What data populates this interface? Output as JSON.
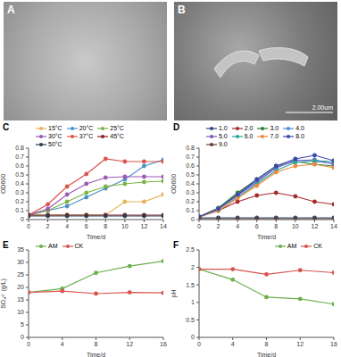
{
  "images": [
    {
      "label": "A"
    },
    {
      "label": "B",
      "scale_bar": "2.00um"
    }
  ],
  "chart_data": [
    {
      "panel": "C",
      "type": "line",
      "x_label": "Time/d",
      "y_label": "OD600",
      "x": [
        0,
        2,
        4,
        6,
        8,
        10,
        12,
        14
      ],
      "xlim": [
        0,
        14
      ],
      "xticks": [
        0,
        2,
        4,
        6,
        8,
        10,
        12,
        14
      ],
      "ylim": [
        0,
        0.8
      ],
      "yticks": [
        0,
        0.1,
        0.2,
        0.3,
        0.4,
        0.5,
        0.6,
        0.7,
        0.8
      ],
      "grid": false,
      "legend": "top-left",
      "marker": "circle",
      "series": [
        {
          "name": "15°C",
          "color": "#e6b35a",
          "values": [
            0.05,
            0.05,
            0.05,
            0.05,
            0.05,
            0.2,
            0.2,
            0.28
          ]
        },
        {
          "name": "20°C",
          "color": "#4a90c8",
          "values": [
            0.05,
            0.1,
            0.15,
            0.25,
            0.35,
            0.45,
            0.6,
            0.67
          ]
        },
        {
          "name": "25°C",
          "color": "#7cb342",
          "values": [
            0.05,
            0.1,
            0.2,
            0.3,
            0.37,
            0.4,
            0.42,
            0.43
          ]
        },
        {
          "name": "30°C",
          "color": "#9b59b6",
          "values": [
            0.05,
            0.12,
            0.28,
            0.4,
            0.47,
            0.48,
            0.48,
            0.48
          ]
        },
        {
          "name": "37°C",
          "color": "#d9534f",
          "values": [
            0.05,
            0.17,
            0.37,
            0.51,
            0.68,
            0.65,
            0.65,
            0.65
          ]
        },
        {
          "name": "45°C",
          "color": "#8b1e1e",
          "values": [
            0.05,
            0.05,
            0.05,
            0.05,
            0.05,
            0.05,
            0.05,
            0.05
          ]
        },
        {
          "name": "50°C",
          "color": "#2c3e50",
          "values": [
            0.04,
            0.04,
            0.04,
            0.04,
            0.04,
            0.04,
            0.04,
            0.04
          ]
        }
      ]
    },
    {
      "panel": "D",
      "type": "line",
      "x_label": "Time/d",
      "y_label": "OD600",
      "x": [
        0,
        2,
        4,
        6,
        8,
        10,
        12,
        14
      ],
      "xlim": [
        0,
        14
      ],
      "xticks": [
        0,
        2,
        4,
        6,
        8,
        10,
        12,
        14
      ],
      "ylim": [
        0,
        0.8
      ],
      "yticks": [
        0,
        0.1,
        0.2,
        0.3,
        0.4,
        0.5,
        0.6,
        0.7,
        0.8
      ],
      "grid": false,
      "legend": "top-left",
      "marker": "circle",
      "series": [
        {
          "name": "1.0",
          "color": "#2e4a7d",
          "values": [
            0.02,
            0.02,
            0.02,
            0.02,
            0.02,
            0.02,
            0.02,
            0.02
          ]
        },
        {
          "name": "2.0",
          "color": "#a52a2a",
          "values": [
            0.03,
            0.1,
            0.2,
            0.27,
            0.3,
            0.26,
            0.2,
            0.17
          ]
        },
        {
          "name": "3.0",
          "color": "#2e7d32",
          "values": [
            0.03,
            0.13,
            0.3,
            0.45,
            0.6,
            0.65,
            0.62,
            0.6
          ]
        },
        {
          "name": "4.0",
          "color": "#4a90d9",
          "values": [
            0.03,
            0.12,
            0.28,
            0.43,
            0.58,
            0.67,
            0.65,
            0.63
          ]
        },
        {
          "name": "5.0",
          "color": "#7e57c2",
          "values": [
            0.03,
            0.12,
            0.27,
            0.42,
            0.58,
            0.66,
            0.67,
            0.62
          ]
        },
        {
          "name": "6.0",
          "color": "#26a69a",
          "values": [
            0.03,
            0.1,
            0.25,
            0.4,
            0.55,
            0.64,
            0.66,
            0.65
          ]
        },
        {
          "name": "7.0",
          "color": "#ef8a3c",
          "values": [
            0.03,
            0.1,
            0.24,
            0.38,
            0.53,
            0.6,
            0.62,
            0.58
          ]
        },
        {
          "name": "8.0",
          "color": "#3949ab",
          "values": [
            0.03,
            0.12,
            0.28,
            0.45,
            0.6,
            0.68,
            0.72,
            0.66
          ]
        },
        {
          "name": "9.0",
          "color": "#5d4037",
          "values": [
            0.01,
            0.01,
            0.01,
            0.01,
            0.01,
            0.01,
            0.01,
            0.01
          ]
        }
      ]
    },
    {
      "panel": "E",
      "type": "line",
      "x_label": "Time/d",
      "y_label": "SO₄²⁻ (g/L)",
      "x": [
        0,
        4,
        8,
        12,
        16
      ],
      "xlim": [
        0,
        16
      ],
      "xticks": [
        0,
        4,
        8,
        12,
        16
      ],
      "ylim": [
        0,
        35
      ],
      "yticks": [
        0,
        5,
        10,
        15,
        20,
        25,
        30,
        35
      ],
      "grid": false,
      "legend": "top-left",
      "marker": "circle",
      "series": [
        {
          "name": "AM",
          "color": "#6ab04c",
          "values": [
            18,
            19.5,
            25.8,
            28.5,
            30.5
          ]
        },
        {
          "name": "CK",
          "color": "#d9534f",
          "values": [
            18,
            18.5,
            17.5,
            18,
            17.8
          ]
        }
      ]
    },
    {
      "panel": "F",
      "type": "line",
      "x_label": "Time/d",
      "y_label": "pH",
      "x": [
        0,
        4,
        8,
        12,
        16
      ],
      "xlim": [
        0,
        16
      ],
      "xticks": [
        0,
        4,
        8,
        12,
        16
      ],
      "ylim": [
        0,
        2.5
      ],
      "yticks": [
        0,
        0.5,
        1,
        1.5,
        2,
        2.5
      ],
      "grid": false,
      "legend": "top-right",
      "marker": "circle",
      "series": [
        {
          "name": "AM",
          "color": "#6ab04c",
          "values": [
            1.95,
            1.65,
            1.15,
            1.1,
            0.95
          ]
        },
        {
          "name": "CK",
          "color": "#d9534f",
          "values": [
            1.95,
            1.95,
            1.8,
            1.92,
            1.85
          ]
        }
      ]
    }
  ]
}
